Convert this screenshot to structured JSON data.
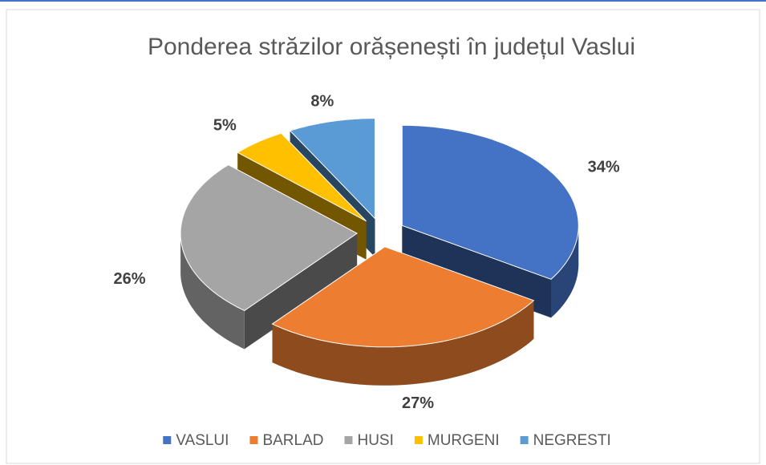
{
  "chart_data": {
    "type": "pie3d",
    "title": "Ponderea străzilor orășenești în județul Vaslui",
    "categories": [
      "VASLUI",
      "BARLAD",
      "HUSI",
      "MURGENI",
      "NEGRESTI"
    ],
    "values": [
      34,
      27,
      26,
      5,
      8
    ],
    "value_labels": [
      "34%",
      "27%",
      "26%",
      "5%",
      "8%"
    ],
    "colors": [
      "#4472c4",
      "#ed7d31",
      "#a5a5a5",
      "#ffc000",
      "#5b9bd5"
    ],
    "legend": "bottom"
  }
}
